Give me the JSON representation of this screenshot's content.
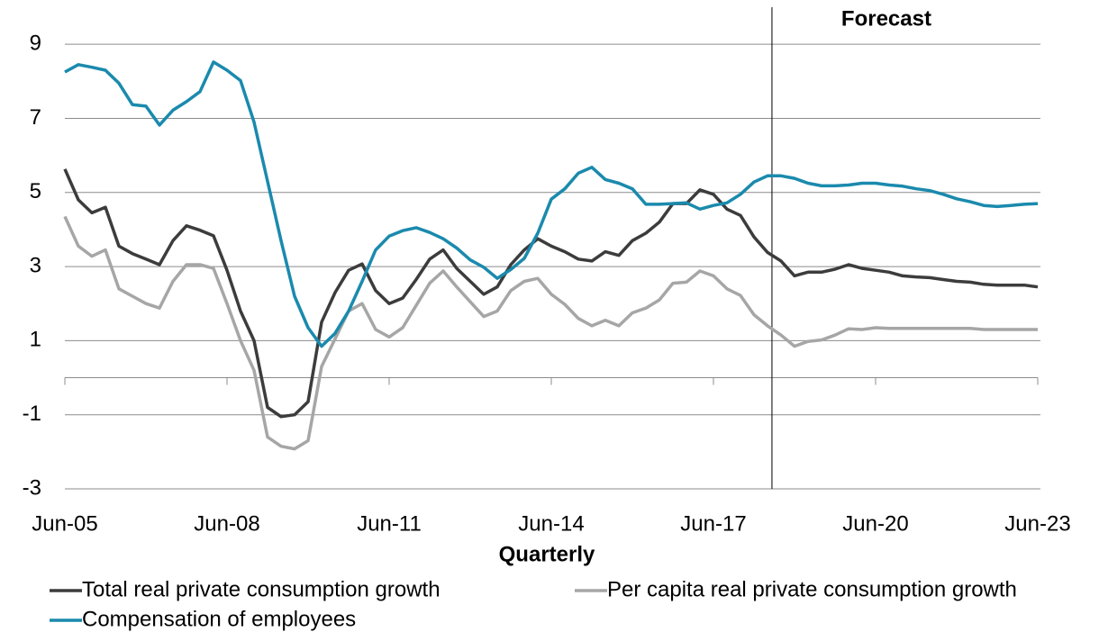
{
  "chart_data": {
    "type": "line",
    "x_label": "Quarterly",
    "annotations": [
      {
        "text": "Forecast",
        "x": 52.33
      }
    ],
    "categories": [
      "Jun-05",
      null,
      null,
      null,
      null,
      null,
      null,
      null,
      null,
      null,
      null,
      null,
      "Jun-08",
      null,
      null,
      null,
      null,
      null,
      null,
      null,
      null,
      null,
      null,
      null,
      "Jun-11",
      null,
      null,
      null,
      null,
      null,
      null,
      null,
      null,
      null,
      null,
      null,
      "Jun-14",
      null,
      null,
      null,
      null,
      null,
      null,
      null,
      null,
      null,
      null,
      null,
      "Jun-17",
      null,
      null,
      null,
      null,
      null,
      null,
      null,
      null,
      null,
      null,
      null,
      "Jun-20",
      null,
      null,
      null,
      null,
      null,
      null,
      null,
      null,
      null,
      null,
      null,
      "Jun-23"
    ],
    "series": [
      {
        "name": "Total real private consumption growth",
        "color": "#3c3c3c",
        "values": [
          5.63,
          4.8,
          4.45,
          4.6,
          3.55,
          3.35,
          3.2,
          3.05,
          3.7,
          4.1,
          3.98,
          3.83,
          2.9,
          1.8,
          1.0,
          -0.8,
          -1.05,
          -1.0,
          -0.65,
          1.5,
          2.3,
          2.9,
          3.07,
          2.35,
          2.0,
          2.15,
          2.65,
          3.2,
          3.45,
          2.95,
          2.6,
          2.25,
          2.45,
          3.05,
          3.45,
          3.75,
          3.55,
          3.4,
          3.2,
          3.15,
          3.4,
          3.3,
          3.7,
          3.9,
          4.2,
          4.7,
          4.7,
          5.07,
          4.95,
          4.55,
          4.38,
          3.8,
          3.38,
          3.15,
          2.75,
          2.85,
          2.85,
          2.93,
          3.05,
          2.95,
          2.9,
          2.85,
          2.75,
          2.72,
          2.7,
          2.65,
          2.6,
          2.58,
          2.52,
          2.5,
          2.5,
          2.5,
          2.45
        ]
      },
      {
        "name": "Per capita real private consumption growth",
        "color": "#a6a6a6",
        "values": [
          4.35,
          3.55,
          3.28,
          3.45,
          2.4,
          2.2,
          2.0,
          1.88,
          2.6,
          3.05,
          3.05,
          2.95,
          2.0,
          1.0,
          0.2,
          -1.6,
          -1.85,
          -1.92,
          -1.7,
          0.3,
          1.05,
          1.8,
          2.0,
          1.3,
          1.1,
          1.35,
          1.95,
          2.55,
          2.88,
          2.45,
          2.05,
          1.65,
          1.8,
          2.35,
          2.6,
          2.68,
          2.25,
          1.98,
          1.6,
          1.4,
          1.55,
          1.4,
          1.75,
          1.88,
          2.1,
          2.55,
          2.58,
          2.88,
          2.75,
          2.4,
          2.22,
          1.7,
          1.4,
          1.15,
          0.85,
          0.98,
          1.02,
          1.15,
          1.32,
          1.3,
          1.35,
          1.33,
          1.33,
          1.33,
          1.33,
          1.33,
          1.33,
          1.33,
          1.3,
          1.3,
          1.3,
          1.3,
          1.3
        ]
      },
      {
        "name": "Compensation of employees",
        "color": "#1a8aad",
        "values": [
          8.25,
          8.45,
          8.38,
          8.3,
          7.95,
          7.37,
          7.33,
          6.82,
          7.22,
          7.45,
          7.72,
          8.52,
          8.3,
          8.02,
          6.9,
          5.3,
          3.7,
          2.2,
          1.35,
          0.85,
          1.2,
          1.8,
          2.6,
          3.45,
          3.82,
          3.97,
          4.05,
          3.92,
          3.75,
          3.5,
          3.18,
          2.98,
          2.68,
          2.92,
          3.22,
          3.9,
          4.82,
          5.1,
          5.52,
          5.68,
          5.35,
          5.25,
          5.1,
          4.68,
          4.68,
          4.7,
          4.72,
          4.55,
          4.65,
          4.72,
          4.95,
          5.28,
          5.45,
          5.45,
          5.38,
          5.25,
          5.18,
          5.18,
          5.2,
          5.25,
          5.25,
          5.2,
          5.17,
          5.1,
          5.05,
          4.95,
          4.83,
          4.75,
          4.65,
          4.62,
          4.65,
          4.68,
          4.7
        ]
      }
    ],
    "ylim": [
      -3,
      10
    ],
    "yticks": [
      -3,
      -1,
      1,
      3,
      5,
      7,
      9
    ],
    "grid": true,
    "legend": "bottom"
  }
}
